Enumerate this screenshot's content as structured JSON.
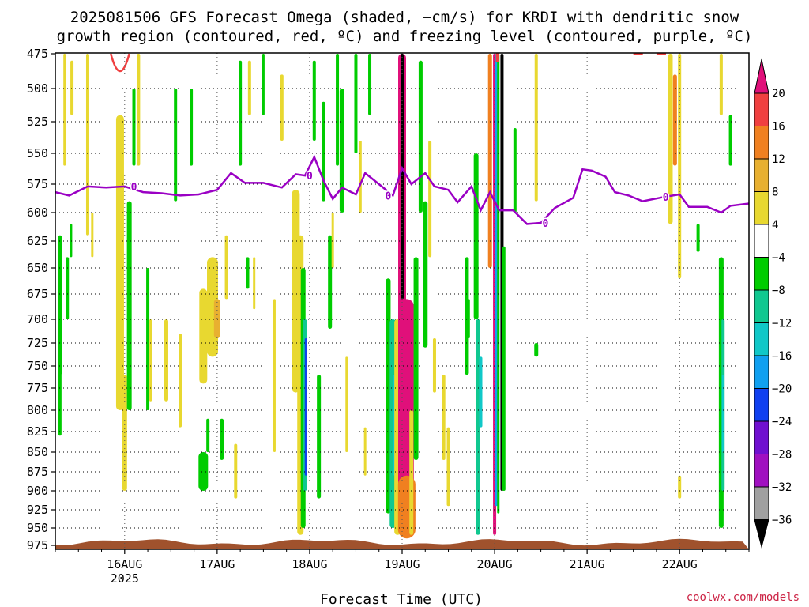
{
  "chart_data": {
    "type": "heatmap",
    "title_lines": [
      "2025081506 GFS Forecast Omega (shaded, −cm/s) for KRDI with dendritic snow",
      "growth region (contoured, red, ºC) and freezing level (contoured, purple, ºC)"
    ],
    "xlabel": "Forecast Time (UTC)",
    "credit": "coolwx.com/models",
    "x_ticks": [
      {
        "label": "16AUG",
        "sub": "2025",
        "day": 16
      },
      {
        "label": "17AUG",
        "sub": "",
        "day": 17
      },
      {
        "label": "18AUG",
        "sub": "",
        "day": 18
      },
      {
        "label": "19AUG",
        "sub": "",
        "day": 19
      },
      {
        "label": "20AUG",
        "sub": "",
        "day": 20
      },
      {
        "label": "21AUG",
        "sub": "",
        "day": 21
      },
      {
        "label": "22AUG",
        "sub": "",
        "day": 22
      }
    ],
    "xlim_days": [
      15.25,
      22.75
    ],
    "pressure_levels": [
      "475",
      "500",
      "525",
      "550",
      "575",
      "600",
      "625",
      "650",
      "675",
      "700",
      "725",
      "750",
      "775",
      "800",
      "825",
      "850",
      "875",
      "900",
      "925",
      "950",
      "975"
    ],
    "ylim": [
      475,
      975
    ],
    "colorbar": {
      "labels": [
        "20",
        "16",
        "12",
        "8",
        "4",
        "−4",
        "−8",
        "−12",
        "−16",
        "−20",
        "−24",
        "−28",
        "−32",
        "−36"
      ],
      "colors": [
        "#e0107a",
        "#f04040",
        "#f08020",
        "#e8b030",
        "#e8d830",
        "#ffffff",
        "#00cc00",
        "#10c890",
        "#10c8c8",
        "#10a0f0",
        "#1040f0",
        "#7010d0",
        "#a010c0",
        "#a0a0a0",
        "#000000"
      ]
    },
    "freezing_level": {
      "label": "0",
      "points": [
        [
          15.25,
          582
        ],
        [
          15.4,
          585
        ],
        [
          15.6,
          577
        ],
        [
          15.8,
          578
        ],
        [
          16.0,
          577
        ],
        [
          16.2,
          582
        ],
        [
          16.4,
          583
        ],
        [
          16.6,
          585
        ],
        [
          16.8,
          584
        ],
        [
          17.0,
          580
        ],
        [
          17.15,
          566
        ],
        [
          17.3,
          574
        ],
        [
          17.5,
          574
        ],
        [
          17.7,
          578
        ],
        [
          17.85,
          567
        ],
        [
          17.95,
          568
        ],
        [
          18.05,
          553
        ],
        [
          18.15,
          572
        ],
        [
          18.25,
          588
        ],
        [
          18.35,
          578
        ],
        [
          18.5,
          584
        ],
        [
          18.6,
          566
        ],
        [
          18.75,
          575
        ],
        [
          18.9,
          585
        ],
        [
          19.0,
          562
        ],
        [
          19.1,
          575
        ],
        [
          19.25,
          566
        ],
        [
          19.35,
          577
        ],
        [
          19.5,
          580
        ],
        [
          19.6,
          591
        ],
        [
          19.75,
          577
        ],
        [
          19.85,
          598
        ],
        [
          19.95,
          582
        ],
        [
          20.05,
          598
        ],
        [
          20.2,
          598
        ],
        [
          20.35,
          610
        ],
        [
          20.5,
          609
        ],
        [
          20.65,
          596
        ],
        [
          20.85,
          587
        ],
        [
          20.95,
          563
        ],
        [
          21.05,
          564
        ],
        [
          21.2,
          569
        ],
        [
          21.3,
          582
        ],
        [
          21.45,
          585
        ],
        [
          21.6,
          590
        ],
        [
          21.85,
          586
        ],
        [
          22.0,
          584
        ],
        [
          22.1,
          595
        ],
        [
          22.3,
          595
        ],
        [
          22.45,
          600
        ],
        [
          22.55,
          594
        ],
        [
          22.75,
          592
        ]
      ]
    },
    "dgz_label": "",
    "note": ""
  }
}
